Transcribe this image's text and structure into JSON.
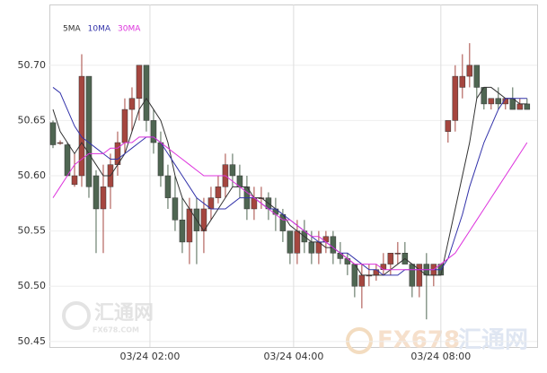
{
  "chart_data": {
    "type": "candlestick",
    "legend": "top-left",
    "grid": true,
    "up_color": "#a5463f",
    "down_color": "#4f6652",
    "ylim": [
      50.445,
      50.755
    ],
    "yticks": [
      {
        "value": 50.7,
        "label": "50.70"
      },
      50.65,
      {
        "value": 50.6,
        "label": "50.60"
      },
      50.55,
      {
        "value": 50.5,
        "label": "50.50"
      },
      50.45
    ],
    "xlim": [
      -0.5,
      67.4
    ],
    "xticks": [
      {
        "value": 13.5,
        "label": "03/24 02:00"
      },
      {
        "value": 33.5,
        "label": "03/24 04:00"
      },
      {
        "value": 54,
        "label": "03/24 08:00"
      }
    ],
    "open": [
      50.648,
      50.63,
      50.628,
      50.592,
      50.6,
      50.69,
      50.6,
      50.57,
      50.59,
      50.61,
      50.63,
      50.66,
      50.67,
      50.7,
      50.65,
      50.63,
      50.6,
      50.58,
      50.56,
      50.54,
      50.57,
      50.55,
      50.57,
      50.58,
      50.59,
      50.61,
      50.6,
      50.59,
      50.57,
      50.58,
      50.58,
      50.57,
      50.565,
      50.55,
      50.53,
      50.55,
      50.54,
      50.53,
      50.54,
      50.545,
      50.53,
      50.525,
      50.52,
      50.5,
      50.51,
      50.51,
      50.515,
      50.52,
      50.53,
      50.53,
      50.52,
      50.5,
      50.52,
      50.51,
      50.52,
      50.64,
      50.65,
      50.68,
      50.69,
      50.7,
      50.68,
      50.665,
      50.67,
      50.665,
      50.67,
      50.66,
      50.665
    ],
    "high": [
      50.65,
      50.632,
      50.63,
      50.62,
      50.71,
      50.69,
      50.605,
      50.61,
      50.62,
      50.64,
      50.67,
      50.68,
      50.7,
      50.7,
      50.66,
      50.64,
      50.61,
      50.6,
      50.58,
      50.58,
      50.58,
      50.58,
      50.59,
      50.6,
      50.62,
      50.62,
      50.61,
      50.6,
      50.59,
      50.59,
      50.585,
      50.58,
      50.57,
      50.55,
      50.56,
      50.56,
      50.55,
      50.55,
      50.55,
      50.55,
      50.54,
      50.53,
      50.52,
      50.52,
      50.52,
      50.52,
      50.53,
      50.53,
      50.54,
      50.54,
      50.52,
      50.52,
      50.53,
      50.52,
      50.52,
      50.65,
      50.7,
      50.71,
      50.72,
      50.7,
      50.68,
      50.67,
      50.68,
      50.67,
      50.68,
      50.67,
      50.67
    ],
    "low": [
      50.625,
      50.628,
      50.6,
      50.59,
      50.59,
      50.58,
      50.53,
      50.53,
      50.57,
      50.6,
      50.62,
      50.64,
      50.65,
      50.64,
      50.62,
      50.59,
      50.57,
      50.55,
      50.53,
      50.52,
      50.52,
      50.53,
      50.56,
      50.575,
      50.58,
      50.59,
      50.58,
      50.56,
      50.56,
      50.57,
      50.56,
      50.55,
      50.54,
      50.52,
      50.52,
      50.53,
      50.52,
      50.52,
      50.53,
      50.52,
      50.52,
      50.51,
      50.49,
      50.48,
      50.5,
      50.505,
      50.51,
      50.51,
      50.52,
      50.52,
      50.49,
      50.49,
      50.47,
      50.5,
      50.51,
      50.63,
      50.64,
      50.67,
      50.68,
      50.67,
      50.66,
      50.66,
      50.66,
      50.66,
      50.66,
      50.66,
      50.66
    ],
    "close": [
      50.628,
      50.63,
      50.6,
      50.6,
      50.69,
      50.59,
      50.57,
      50.59,
      50.61,
      50.63,
      50.66,
      50.67,
      50.7,
      50.65,
      50.63,
      50.6,
      50.58,
      50.56,
      50.54,
      50.57,
      50.55,
      50.57,
      50.58,
      50.59,
      50.61,
      50.6,
      50.59,
      50.57,
      50.58,
      50.58,
      50.57,
      50.565,
      50.55,
      50.53,
      50.55,
      50.54,
      50.53,
      50.54,
      50.545,
      50.53,
      50.525,
      50.52,
      50.5,
      50.51,
      50.51,
      50.515,
      50.52,
      50.53,
      50.53,
      50.52,
      50.5,
      50.52,
      50.51,
      50.52,
      50.51,
      50.65,
      50.69,
      50.69,
      50.7,
      50.68,
      50.665,
      50.67,
      50.665,
      50.67,
      50.66,
      50.665,
      50.66
    ],
    "series": [
      {
        "name": "5MA",
        "color": "#333333",
        "values": [
          50.66,
          50.64,
          50.63,
          50.62,
          50.63,
          50.62,
          50.61,
          50.6,
          50.6,
          50.61,
          50.62,
          50.64,
          50.66,
          50.67,
          50.66,
          50.65,
          50.63,
          50.6,
          50.58,
          50.57,
          50.56,
          50.55,
          50.56,
          50.57,
          50.58,
          50.59,
          50.59,
          50.59,
          50.58,
          50.58,
          50.575,
          50.57,
          50.565,
          50.555,
          50.55,
          50.545,
          50.54,
          50.54,
          50.535,
          50.535,
          50.53,
          50.525,
          50.52,
          50.51,
          50.51,
          50.51,
          50.51,
          50.515,
          50.52,
          50.525,
          50.52,
          50.515,
          50.51,
          50.51,
          50.51,
          50.54,
          50.57,
          50.6,
          50.63,
          50.67,
          50.68,
          50.68,
          50.675,
          50.67,
          50.67,
          50.665,
          50.665
        ]
      },
      {
        "name": "10MA",
        "color": "#3333aa",
        "values": [
          50.68,
          50.675,
          50.66,
          50.645,
          50.635,
          50.63,
          50.625,
          50.62,
          50.615,
          50.615,
          50.62,
          50.625,
          50.63,
          50.635,
          50.635,
          50.63,
          50.62,
          50.61,
          50.6,
          50.59,
          50.58,
          50.575,
          50.57,
          50.57,
          50.57,
          50.575,
          50.58,
          50.58,
          50.58,
          50.575,
          50.57,
          50.57,
          50.565,
          50.56,
          50.555,
          50.55,
          50.545,
          50.54,
          50.54,
          50.535,
          50.53,
          50.53,
          50.525,
          50.52,
          50.515,
          50.515,
          50.51,
          50.51,
          50.51,
          50.515,
          50.515,
          50.515,
          50.515,
          50.515,
          50.515,
          50.525,
          50.545,
          50.565,
          50.59,
          50.61,
          50.63,
          50.645,
          50.66,
          50.67,
          50.67,
          50.67,
          50.67
        ]
      },
      {
        "name": "30MA",
        "color": "#dd33dd",
        "values": [
          50.58,
          50.59,
          50.6,
          50.61,
          50.615,
          50.62,
          50.62,
          50.62,
          50.625,
          50.625,
          50.63,
          50.63,
          50.635,
          50.635,
          50.635,
          50.63,
          50.625,
          50.62,
          50.615,
          50.61,
          50.605,
          50.6,
          50.6,
          50.6,
          50.6,
          50.595,
          50.59,
          50.585,
          50.58,
          50.575,
          50.57,
          50.565,
          50.56,
          50.56,
          50.555,
          50.55,
          50.545,
          50.545,
          50.54,
          50.535,
          50.53,
          50.525,
          50.52,
          50.52,
          50.52,
          50.52,
          50.515,
          50.515,
          50.515,
          50.515,
          50.515,
          50.515,
          50.515,
          50.515,
          50.52,
          50.525,
          50.53,
          50.54,
          50.55,
          50.56,
          50.57,
          50.58,
          50.59,
          50.6,
          50.61,
          50.62,
          50.63
        ]
      }
    ],
    "watermarks": [
      "汇通网",
      "FX678.COM",
      "FX678",
      "汇通网"
    ]
  }
}
